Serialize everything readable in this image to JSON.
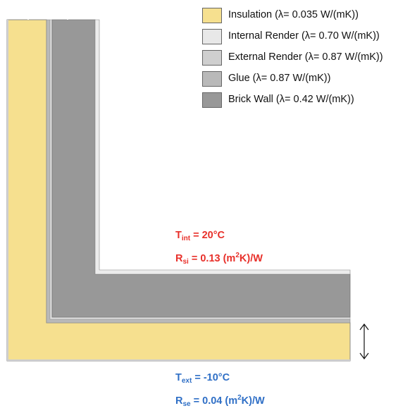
{
  "legend": [
    {
      "label": "Insulation (λ= 0.035 W/(mK))",
      "color": "#f6e08f"
    },
    {
      "label": "Internal Render (λ= 0.70 W/(mK))",
      "color": "#e8e8e8"
    },
    {
      "label": "External Render (λ= 0.87 W/(mK))",
      "color": "#cfcfcf"
    },
    {
      "label": "Glue (λ= 0.87 W/(mK))",
      "color": "#b9b9b9"
    },
    {
      "label": "Brick Wall (λ= 0.42 W/(mK))",
      "color": "#989898"
    }
  ],
  "interior": {
    "t_sym": "T",
    "t_sub": "int",
    "t_val": " = 20°C",
    "r_sym": "R",
    "r_sub": "si",
    "r_val_pre": " = 0.13 (m",
    "r_sup": "2",
    "r_val_post": "K)/W",
    "color": "#e8302a"
  },
  "exterior": {
    "t_sym": "T",
    "t_sub": "ext",
    "t_val": " = -10°C",
    "r_sym": "R",
    "r_sub": "se",
    "r_val_pre": " = 0.04 (m",
    "r_sup": "2",
    "r_val_post": "K)/W",
    "color": "#2f6fc6"
  }
}
